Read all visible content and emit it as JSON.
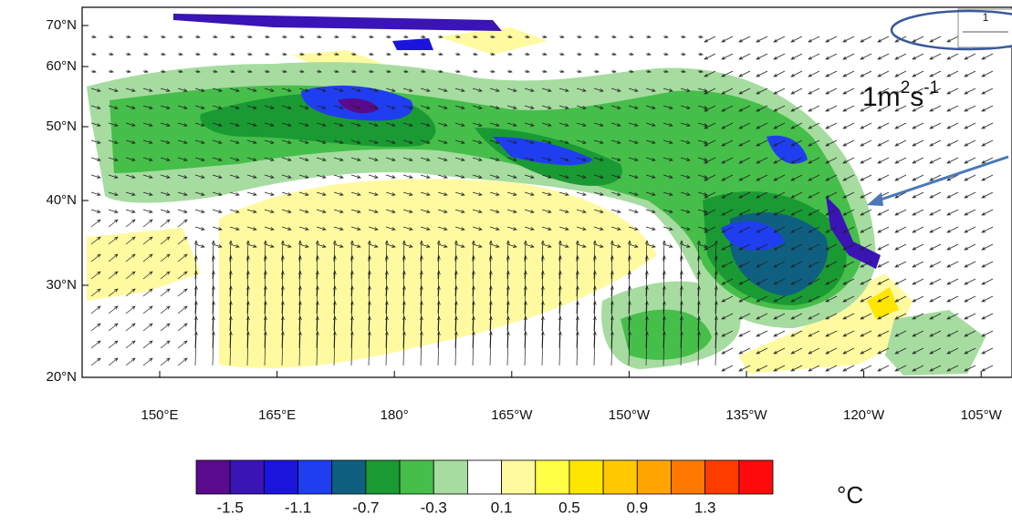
{
  "map": {
    "lat_labels": [
      "70°N",
      "60°N",
      "50°N",
      "40°N",
      "30°N",
      "20°N"
    ],
    "lon_labels": [
      "150°E",
      "165°E",
      "180°",
      "165°W",
      "150°W",
      "135°W",
      "120°W",
      "105°W"
    ]
  },
  "colorbar": {
    "colors": [
      "#5a0a8c",
      "#3a14b4",
      "#1a14dc",
      "#1f3ef0",
      "#0f6080",
      "#1a9a32",
      "#46be4a",
      "#a6dca0",
      "#ffffff",
      "#fffaa0",
      "#ffff46",
      "#ffe600",
      "#ffc800",
      "#ffa500",
      "#ff7800",
      "#ff3c00",
      "#ff0a0a"
    ],
    "labels": [
      -1.5,
      -1.1,
      -0.7,
      -0.3,
      0.1,
      0.5,
      0.9,
      1.3
    ],
    "unit": "°C"
  },
  "annotation": {
    "reference_vector": "1",
    "flux_unit": {
      "base": "1m",
      "sup1": "2",
      "mid": "s",
      "sup2": "-1"
    }
  }
}
